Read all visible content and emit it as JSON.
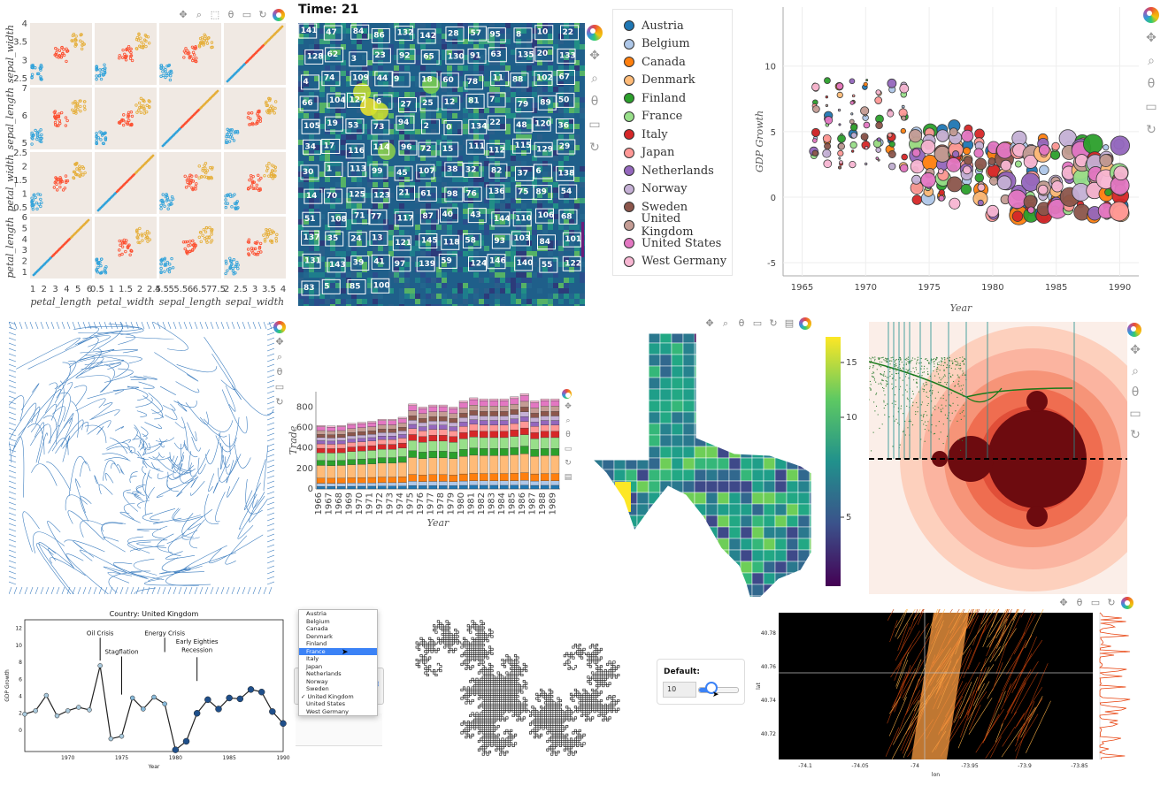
{
  "toolbar_icons": [
    "pan-icon",
    "box-zoom-icon",
    "box-select-icon",
    "wheel-zoom-icon",
    "save-icon",
    "reset-icon",
    "bokeh-logo-icon"
  ],
  "splom": {
    "row_labels": [
      "sepal_width",
      "sepal_length",
      "petal_width",
      "petal_length"
    ],
    "col_labels": [
      "petal_length",
      "petal_width",
      "sepal_length",
      "sepal_width"
    ],
    "x_ticks": [
      [
        "1",
        "2",
        "3",
        "4",
        "5",
        "6"
      ],
      [
        "0.5",
        "1",
        "1.5",
        "2",
        "2.5"
      ],
      [
        "4.5",
        "5",
        "5.5",
        "6",
        "6.5",
        "7",
        "7.5"
      ],
      [
        "2",
        "2.5",
        "3",
        "3.5",
        "4"
      ]
    ],
    "y_ticks": [
      [
        "2.5",
        "3",
        "3.5",
        "4"
      ],
      [
        "5",
        "6",
        "7"
      ],
      [
        "0.5",
        "1",
        "1.5",
        "2",
        "2.5"
      ],
      [
        "1",
        "2",
        "3",
        "4",
        "5",
        "6"
      ]
    ],
    "colors": {
      "setosa": "#30a2da",
      "versicolor": "#fc4f30",
      "virginica": "#e5ae38"
    }
  },
  "heatmap": {
    "title": "Time: 21",
    "box_labels": [
      "141",
      "47",
      "84",
      "86",
      "132",
      "142",
      "28",
      "57",
      "95",
      "8",
      "10",
      "22",
      "128",
      "62",
      "3",
      "23",
      "92",
      "65",
      "130",
      "91",
      "63",
      "135",
      "20",
      "133",
      "4",
      "74",
      "109",
      "44",
      "9",
      "18",
      "60",
      "78",
      "11",
      "88",
      "102",
      "67",
      "66",
      "104",
      "127",
      "6",
      "27",
      "25",
      "12",
      "81",
      "7",
      "79",
      "89",
      "50",
      "105",
      "19",
      "53",
      "73",
      "94",
      "2",
      "0",
      "134",
      "22",
      "48",
      "120",
      "36",
      "34",
      "17",
      "116",
      "114",
      "96",
      "72",
      "15",
      "111",
      "112",
      "115",
      "129",
      "29",
      "30",
      "1",
      "113",
      "99",
      "45",
      "107",
      "38",
      "32",
      "82",
      "37",
      "6",
      "138",
      "14",
      "70",
      "125",
      "123",
      "21",
      "61",
      "98",
      "76",
      "136",
      "75",
      "89",
      "54",
      "51",
      "108",
      "71",
      "77",
      "117",
      "87",
      "40",
      "43",
      "144",
      "110",
      "106",
      "68",
      "137",
      "35",
      "24",
      "13",
      "121",
      "145",
      "118",
      "58",
      "93",
      "103",
      "84",
      "101",
      "131",
      "143",
      "39",
      "41",
      "97",
      "139",
      "59",
      "124",
      "146",
      "140",
      "55",
      "122",
      "83",
      "5",
      "85",
      "100"
    ],
    "right_numbers": [
      "8",
      "81"
    ]
  },
  "gdp_legend": [
    {
      "name": "Austria",
      "color": "#1f77b4"
    },
    {
      "name": "Belgium",
      "color": "#aec7e8"
    },
    {
      "name": "Canada",
      "color": "#ff7f0e"
    },
    {
      "name": "Denmark",
      "color": "#ffbb78"
    },
    {
      "name": "Finland",
      "color": "#2ca02c"
    },
    {
      "name": "France",
      "color": "#98df8a"
    },
    {
      "name": "Italy",
      "color": "#d62728"
    },
    {
      "name": "Japan",
      "color": "#ff9896"
    },
    {
      "name": "Netherlands",
      "color": "#9467bd"
    },
    {
      "name": "Norway",
      "color": "#c5b0d5"
    },
    {
      "name": "Sweden",
      "color": "#8c564b"
    },
    {
      "name": "United Kingdom",
      "color": "#c49c94"
    },
    {
      "name": "United States",
      "color": "#e377c2"
    },
    {
      "name": "West Germany",
      "color": "#f7b6d2"
    }
  ],
  "gdp_scatter": {
    "xlabel": "Year",
    "ylabel": "GDP Growth",
    "x_ticks": [
      "1965",
      "1970",
      "1975",
      "1980",
      "1985",
      "1990"
    ],
    "y_ticks": [
      "-5",
      "0",
      "5",
      "10"
    ]
  },
  "trade_chart": {
    "xlabel": "Year",
    "ylabel": "Trade",
    "y_ticks": [
      "0",
      "200",
      "400",
      "600",
      "800"
    ],
    "years": [
      "1966",
      "1967",
      "1968",
      "1969",
      "1970",
      "1971",
      "1972",
      "1973",
      "1974",
      "1975",
      "1976",
      "1977",
      "1978",
      "1979",
      "1980",
      "1981",
      "1982",
      "1983",
      "1984",
      "1985",
      "1986",
      "1987",
      "1988",
      "1989"
    ],
    "totals": [
      620,
      615,
      620,
      640,
      650,
      660,
      680,
      680,
      700,
      830,
      800,
      820,
      820,
      800,
      860,
      890,
      880,
      880,
      880,
      900,
      930,
      860,
      880,
      880
    ]
  },
  "texas_colorbar": {
    "ticks": [
      "15",
      "10",
      "5"
    ]
  },
  "uk_chart": {
    "title": "Country: United Kingdom",
    "xlabel": "Year",
    "ylabel": "GDP Growth",
    "x_ticks": [
      "1970",
      "1975",
      "1980",
      "1985",
      "1990"
    ],
    "y_ticks": [
      "0",
      "2",
      "4",
      "6",
      "8",
      "10",
      "12"
    ],
    "annotations": [
      "Oil Crisis",
      "Stagflation",
      "Energy Crisis",
      "Early Eighties Recession"
    ],
    "chart_data": {
      "type": "line",
      "x": [
        1966,
        1967,
        1968,
        1969,
        1970,
        1971,
        1972,
        1973,
        1974,
        1975,
        1976,
        1977,
        1978,
        1979,
        1980,
        1981,
        1982,
        1983,
        1984,
        1985,
        1986,
        1987,
        1988,
        1989,
        1990
      ],
      "values": [
        1.9,
        2.3,
        4.1,
        1.7,
        2.3,
        2.7,
        2.4,
        7.6,
        -1.0,
        -0.7,
        3.8,
        2.5,
        3.9,
        3.1,
        -2.3,
        -1.3,
        2.0,
        3.6,
        2.5,
        3.8,
        3.7,
        4.8,
        4.5,
        2.2,
        0.8
      ]
    }
  },
  "country_list": {
    "items": [
      "Austria",
      "Belgium",
      "Canada",
      "Denmark",
      "Finland",
      "France",
      "Italy",
      "Japan",
      "Netherlands",
      "Norway",
      "Sweden",
      "United Kingdom",
      "United States",
      "West Germany"
    ],
    "selected": "France",
    "checked": "United Kingdom"
  },
  "slider_widget": {
    "label": "Default:",
    "value": "10"
  },
  "nyc_taxi": {
    "xlabel": "lon",
    "ylabel": "lat",
    "x_ticks": [
      "-74.1",
      "-74.05",
      "-74",
      "-73.95",
      "-73.9",
      "-73.85"
    ],
    "y_ticks": [
      "40.78",
      "40.76",
      "40.74",
      "40.72"
    ]
  }
}
